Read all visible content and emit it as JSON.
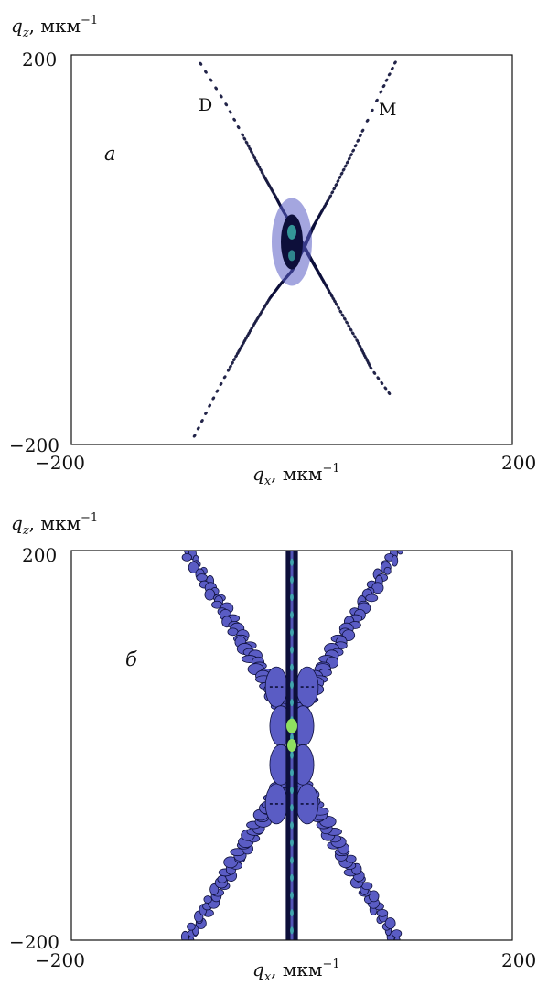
{
  "chart_data": [
    {
      "type": "heatmap",
      "panel_label": "а",
      "xlabel": {
        "symbol": "q",
        "subscript": "x",
        "unit": ", мкм",
        "exponent": "−1"
      },
      "ylabel": {
        "symbol": "q",
        "subscript": "z",
        "unit": ", мкм",
        "exponent": "−1"
      },
      "xlim": [
        -200,
        200
      ],
      "ylim": [
        -200,
        200
      ],
      "xticks": [
        "−200",
        "200"
      ],
      "yticks": [
        "200",
        "−200"
      ],
      "annotations": [
        "D",
        "M"
      ],
      "series": [
        {
          "name": "D",
          "x": [
            -85,
            -60,
            -40,
            -25,
            -15,
            -8,
            0,
            8,
            15,
            25,
            40,
            60,
            72,
            90
          ],
          "z": [
            195,
            150,
            108,
            75,
            55,
            40,
            25,
            10,
            -5,
            -25,
            -55,
            -95,
            -122,
            -150
          ]
        },
        {
          "name": "M",
          "x": [
            -90,
            -70,
            -50,
            -35,
            -20,
            -10,
            0,
            10,
            20,
            35,
            55,
            80,
            95
          ],
          "z": [
            -195,
            -150,
            -108,
            -78,
            -50,
            -35,
            -22,
            0,
            25,
            55,
            100,
            160,
            195
          ]
        }
      ],
      "grid": false
    },
    {
      "type": "heatmap",
      "panel_label": "б",
      "xlabel": {
        "symbol": "q",
        "subscript": "x",
        "unit": ", мкм",
        "exponent": "−1"
      },
      "ylabel": {
        "symbol": "q",
        "subscript": "z",
        "unit": ", мкм",
        "exponent": "−1"
      },
      "xlim": [
        -200,
        200
      ],
      "ylim": [
        -200,
        200
      ],
      "xticks": [
        "−200",
        "200"
      ],
      "yticks": [
        "200",
        "−200"
      ],
      "central_band": {
        "x": [
          -3,
          3
        ],
        "z": [
          -200,
          200
        ]
      },
      "grid": false
    }
  ],
  "colors": {
    "dark": "#0d0f3a",
    "purple": "#5a5cc4",
    "teal": "#3fb8b0",
    "green": "#8fe060"
  }
}
